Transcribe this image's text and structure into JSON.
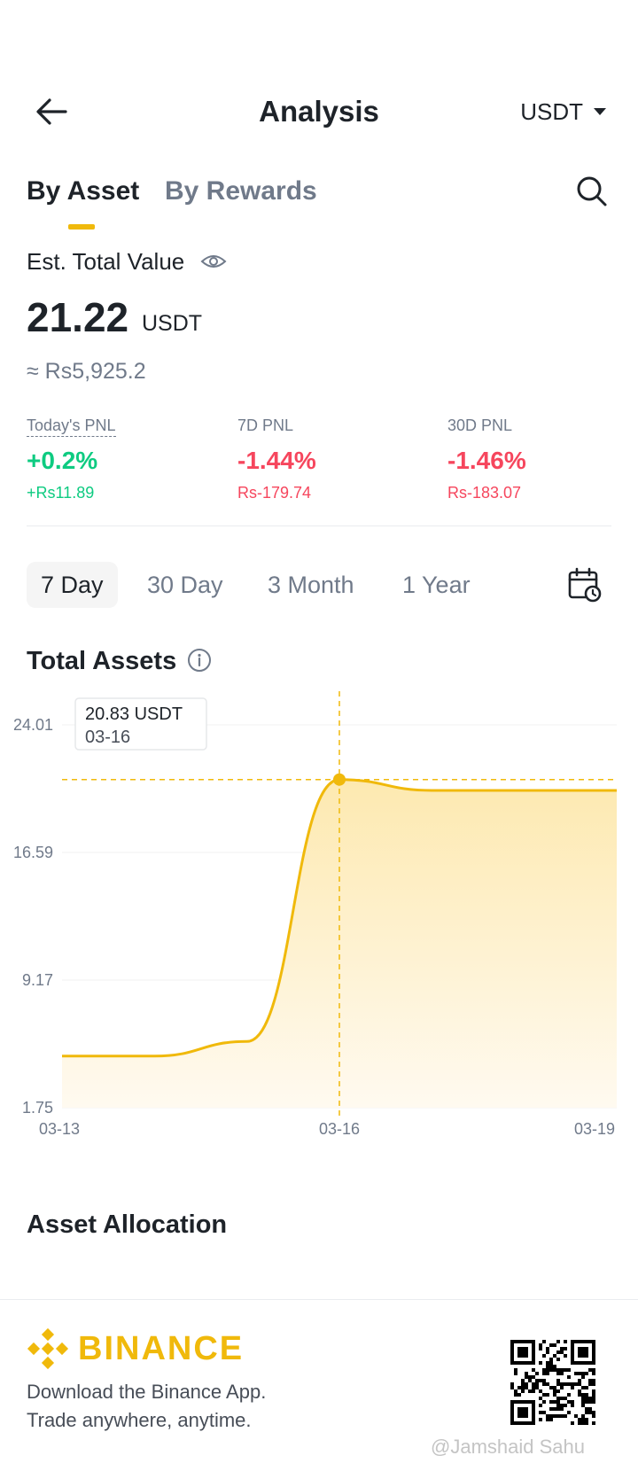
{
  "header": {
    "title": "Analysis",
    "currency": "USDT",
    "back_icon": "arrow-left-icon"
  },
  "tabs": [
    {
      "label": "By Asset",
      "active": true
    },
    {
      "label": "By Rewards",
      "active": false
    }
  ],
  "summary": {
    "est_label": "Est. Total Value",
    "value": "21.22",
    "unit": "USDT",
    "approx": "≈ Rs5,925.2"
  },
  "pnl": [
    {
      "label": "Today's PNL",
      "pct": "+0.2%",
      "abs": "+Rs11.89",
      "tone": "positive"
    },
    {
      "label": "7D PNL",
      "pct": "-1.44%",
      "abs": "Rs-179.74",
      "tone": "negative"
    },
    {
      "label": "30D PNL",
      "pct": "-1.46%",
      "abs": "Rs-183.07",
      "tone": "negative"
    }
  ],
  "ranges": [
    {
      "label": "7 Day",
      "active": true
    },
    {
      "label": "30 Day",
      "active": false
    },
    {
      "label": "3 Month",
      "active": false
    },
    {
      "label": "1 Year",
      "active": false
    }
  ],
  "total_assets": {
    "title": "Total Assets"
  },
  "chart_data": {
    "type": "area",
    "y_ticks": [
      "24.01",
      "16.59",
      "9.17",
      "1.75"
    ],
    "ylim": [
      1.75,
      24.01
    ],
    "x_ticks": [
      "03-13",
      "03-16",
      "03-19"
    ],
    "x": [
      "03-13",
      "03-14",
      "03-15",
      "03-16",
      "03-17",
      "03-18",
      "03-19"
    ],
    "values": [
      4.75,
      4.75,
      5.6,
      20.83,
      20.2,
      20.2,
      20.2
    ],
    "tooltip": {
      "value": "20.83 USDT",
      "date": "03-16"
    },
    "colors": {
      "line": "#f0b90b",
      "fill_top": "#fde9b0",
      "fill_bottom": "#fffaf0",
      "grid": "#f0f0f0"
    }
  },
  "allocation": {
    "title": "Asset Allocation"
  },
  "footer": {
    "brand": "BINANCE",
    "line1": "Download the Binance App.",
    "line2": "Trade anywhere, anytime.",
    "watermark": "@Jamshaid Sahu"
  },
  "colors": {
    "accent": "#f0b90b",
    "positive": "#0ecb81",
    "negative": "#f6465d",
    "text": "#1e2329",
    "muted": "#707a8a"
  }
}
